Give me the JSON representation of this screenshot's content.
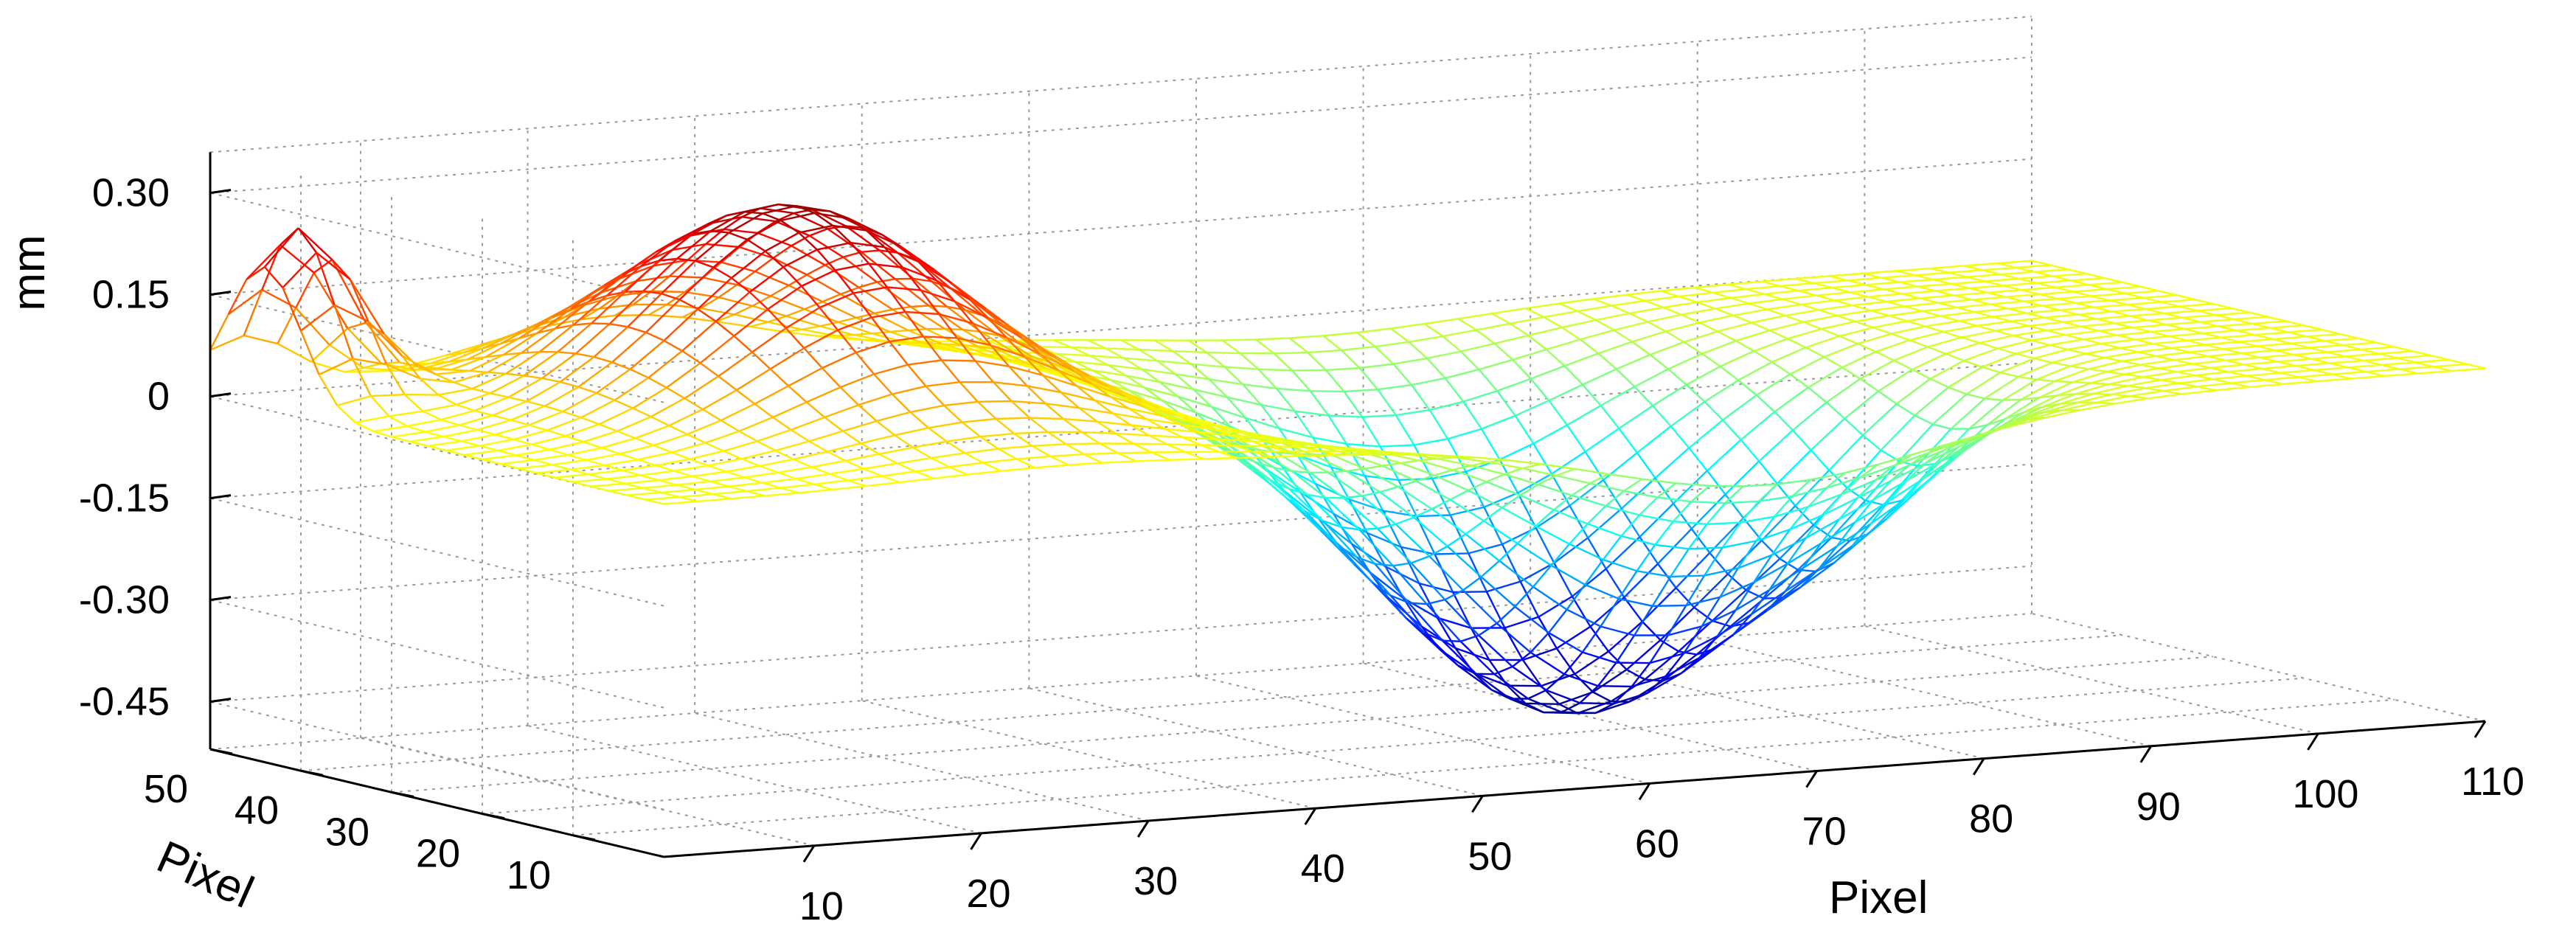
{
  "chart_data": {
    "type": "surface",
    "title": "",
    "xlabel": "Pixel",
    "ylabel": "Pixel",
    "zlabel": "mm",
    "x_ticks": [
      10,
      20,
      30,
      40,
      50,
      60,
      70,
      80,
      90,
      100,
      110
    ],
    "y_ticks": [
      10,
      20,
      30,
      40,
      50
    ],
    "z_ticks": [
      0.3,
      0.15,
      0,
      -0.15,
      -0.3,
      -0.45
    ],
    "z_tick_labels": [
      "0.30",
      "0.15",
      "0",
      "-0.15",
      "-0.30",
      "-0.45"
    ],
    "xlim": [
      1,
      110
    ],
    "ylim": [
      0,
      50
    ],
    "zlim": [
      -0.52,
      0.36
    ],
    "grid": true,
    "colormap": "jet",
    "colormap_stops": [
      "#00008f",
      "#0000ff",
      "#00ffff",
      "#ffff00",
      "#ff0000",
      "#800000"
    ],
    "surface_features": [
      {
        "kind": "peak",
        "x": 25,
        "y": 30,
        "z": 0.3,
        "sigma_x": 8,
        "sigma_y": 12
      },
      {
        "kind": "peak",
        "x": 3,
        "y": 44,
        "z": 0.26,
        "sigma_x": 3,
        "sigma_y": 4
      },
      {
        "kind": "valley",
        "x": 67,
        "y": 22,
        "z": -0.5,
        "sigma_x": 10,
        "sigma_y": 12
      },
      {
        "kind": "valley",
        "x": 82,
        "y": 18,
        "z": -0.1,
        "sigma_x": 5,
        "sigma_y": 6
      }
    ],
    "mesh_resolution": {
      "x_lines": 55,
      "y_lines": 26
    }
  }
}
